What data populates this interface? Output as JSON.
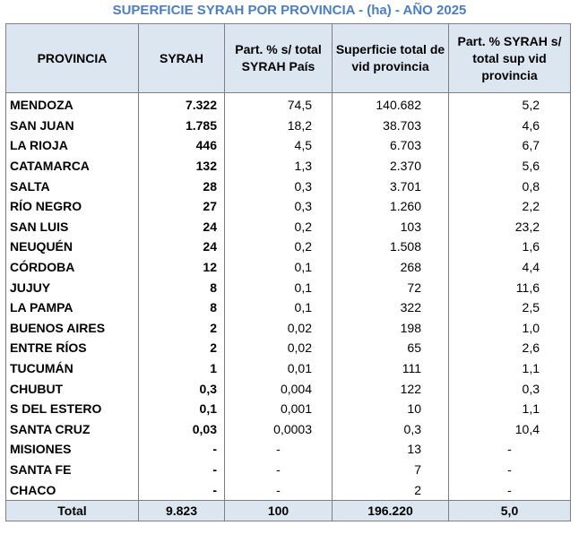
{
  "title": "SUPERFICIE SYRAH POR PROVINCIA - (ha) - AÑO 2025",
  "headers": {
    "provincia": "PROVINCIA",
    "syrah": "SYRAH",
    "part_pais": "Part. % s/ total SYRAH País",
    "sup_total": "Superficie total de vid provincia",
    "part_prov": "Part. % SYRAH s/ total sup vid provincia"
  },
  "rows": [
    {
      "provincia": "MENDOZA",
      "syrah": "7.322",
      "part_pais": "74,5",
      "sup_total": "140.682",
      "part_prov": "5,2"
    },
    {
      "provincia": "SAN JUAN",
      "syrah": "1.785",
      "part_pais": "18,2",
      "sup_total": "38.703",
      "part_prov": "4,6"
    },
    {
      "provincia": "LA RIOJA",
      "syrah": "446",
      "part_pais": "4,5",
      "sup_total": "6.703",
      "part_prov": "6,7"
    },
    {
      "provincia": "CATAMARCA",
      "syrah": "132",
      "part_pais": "1,3",
      "sup_total": "2.370",
      "part_prov": "5,6"
    },
    {
      "provincia": "SALTA",
      "syrah": "28",
      "part_pais": "0,3",
      "sup_total": "3.701",
      "part_prov": "0,8"
    },
    {
      "provincia": "RÍO NEGRO",
      "syrah": "27",
      "part_pais": "0,3",
      "sup_total": "1.260",
      "part_prov": "2,2"
    },
    {
      "provincia": "SAN LUIS",
      "syrah": "24",
      "part_pais": "0,2",
      "sup_total": "103",
      "part_prov": "23,2"
    },
    {
      "provincia": "NEUQUÉN",
      "syrah": "24",
      "part_pais": "0,2",
      "sup_total": "1.508",
      "part_prov": "1,6"
    },
    {
      "provincia": "CÓRDOBA",
      "syrah": "12",
      "part_pais": "0,1",
      "sup_total": "268",
      "part_prov": "4,4"
    },
    {
      "provincia": "JUJUY",
      "syrah": "8",
      "part_pais": "0,1",
      "sup_total": "72",
      "part_prov": "11,6"
    },
    {
      "provincia": "LA PAMPA",
      "syrah": "8",
      "part_pais": "0,1",
      "sup_total": "322",
      "part_prov": "2,5"
    },
    {
      "provincia": "BUENOS AIRES",
      "syrah": "2",
      "part_pais": "0,02",
      "sup_total": "198",
      "part_prov": "1,0"
    },
    {
      "provincia": "ENTRE RÍOS",
      "syrah": "2",
      "part_pais": "0,02",
      "sup_total": "65",
      "part_prov": "2,6"
    },
    {
      "provincia": "TUCUMÁN",
      "syrah": "1",
      "part_pais": "0,01",
      "sup_total": "111",
      "part_prov": "1,1"
    },
    {
      "provincia": "CHUBUT",
      "syrah": "0,3",
      "part_pais": "0,004",
      "sup_total": "122",
      "part_prov": "0,3"
    },
    {
      "provincia": "S DEL ESTERO",
      "syrah": "0,1",
      "part_pais": "0,001",
      "sup_total": "10",
      "part_prov": "1,1"
    },
    {
      "provincia": "SANTA CRUZ",
      "syrah": "0,03",
      "part_pais": "0,0003",
      "sup_total": "0,3",
      "part_prov": "10,4"
    },
    {
      "provincia": "MISIONES",
      "syrah": "-",
      "part_pais": "-",
      "sup_total": "13",
      "part_prov": "-"
    },
    {
      "provincia": "SANTA FE",
      "syrah": "-",
      "part_pais": "-",
      "sup_total": "7",
      "part_prov": "-"
    },
    {
      "provincia": "CHACO",
      "syrah": "-",
      "part_pais": "-",
      "sup_total": "2",
      "part_prov": "-"
    }
  ],
  "total": {
    "label": "Total",
    "syrah": "9.823",
    "part_pais": "100",
    "sup_total": "196.220",
    "part_prov": "5,0"
  }
}
